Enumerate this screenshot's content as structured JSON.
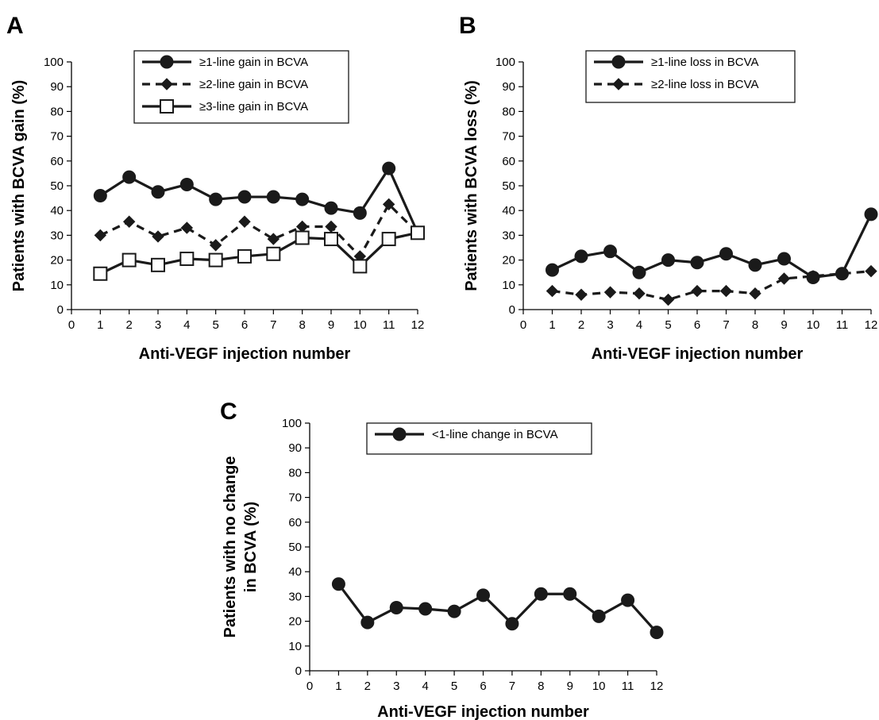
{
  "chart_data": [
    {
      "panel": "A",
      "type": "line",
      "xlabel": "Anti-VEGF injection number",
      "ylabel": "Patients with BCVA gain (%)",
      "xlim": [
        0,
        12
      ],
      "ylim": [
        0,
        100
      ],
      "x_ticks": [
        0,
        1,
        2,
        3,
        4,
        5,
        6,
        7,
        8,
        9,
        10,
        11,
        12
      ],
      "y_ticks": [
        0,
        10,
        20,
        30,
        40,
        50,
        60,
        70,
        80,
        90,
        100
      ],
      "grid": false,
      "legend_position": "top-center",
      "series": [
        {
          "name": "≥1-line gain in BCVA",
          "marker": "circle",
          "dash": "solid",
          "x": [
            1,
            2,
            3,
            4,
            5,
            6,
            7,
            8,
            9,
            10,
            11,
            12
          ],
          "values": [
            46,
            53.5,
            47.5,
            50.5,
            44.5,
            45.5,
            45.5,
            44.5,
            41,
            39,
            57,
            31
          ]
        },
        {
          "name": "≥2-line gain in BCVA",
          "marker": "diamond",
          "dash": "dashed",
          "x": [
            1,
            2,
            3,
            4,
            5,
            6,
            7,
            8,
            9,
            10,
            11,
            12
          ],
          "values": [
            30,
            35.5,
            29.5,
            33,
            26,
            35.5,
            28.5,
            33.5,
            33.5,
            21.5,
            42.5,
            31
          ]
        },
        {
          "name": "≥3-line gain in BCVA",
          "marker": "square-open",
          "dash": "solid",
          "x": [
            1,
            2,
            3,
            4,
            5,
            6,
            7,
            8,
            9,
            10,
            11,
            12
          ],
          "values": [
            14.5,
            20,
            18,
            20.5,
            20,
            21.5,
            22.5,
            29,
            28.5,
            17.5,
            28.5,
            31
          ]
        }
      ]
    },
    {
      "panel": "B",
      "type": "line",
      "xlabel": "Anti-VEGF injection number",
      "ylabel": "Patients with BCVA loss (%)",
      "xlim": [
        0,
        12
      ],
      "ylim": [
        0,
        100
      ],
      "x_ticks": [
        0,
        1,
        2,
        3,
        4,
        5,
        6,
        7,
        8,
        9,
        10,
        11,
        12
      ],
      "y_ticks": [
        0,
        10,
        20,
        30,
        40,
        50,
        60,
        70,
        80,
        90,
        100
      ],
      "grid": false,
      "legend_position": "top-center",
      "series": [
        {
          "name": "≥1-line loss in BCVA",
          "marker": "circle",
          "dash": "solid",
          "x": [
            1,
            2,
            3,
            4,
            5,
            6,
            7,
            8,
            9,
            10,
            11,
            12
          ],
          "values": [
            16,
            21.5,
            23.5,
            15,
            20,
            19,
            22.5,
            18,
            20.5,
            13,
            14.5,
            38.5
          ]
        },
        {
          "name": "≥2-line loss in BCVA",
          "marker": "diamond",
          "dash": "dashed",
          "x": [
            1,
            2,
            3,
            4,
            5,
            6,
            7,
            8,
            9,
            10,
            11,
            12
          ],
          "values": [
            7.5,
            6,
            7,
            6.5,
            4,
            7.5,
            7.5,
            6.5,
            12.5,
            13.5,
            14.5,
            15.5
          ]
        }
      ]
    },
    {
      "panel": "C",
      "type": "line",
      "xlabel": "Anti-VEGF injection number",
      "ylabel": [
        "Patients with no change",
        "in BCVA (%)"
      ],
      "xlim": [
        0,
        12
      ],
      "ylim": [
        0,
        100
      ],
      "x_ticks": [
        0,
        1,
        2,
        3,
        4,
        5,
        6,
        7,
        8,
        9,
        10,
        11,
        12
      ],
      "y_ticks": [
        0,
        10,
        20,
        30,
        40,
        50,
        60,
        70,
        80,
        90,
        100
      ],
      "grid": false,
      "legend_position": "top-center",
      "series": [
        {
          "name": "<1-line change in BCVA",
          "marker": "circle",
          "dash": "solid",
          "x": [
            1,
            2,
            3,
            4,
            5,
            6,
            7,
            8,
            9,
            10,
            11,
            12
          ],
          "values": [
            35,
            19.5,
            25.5,
            25,
            24,
            30.5,
            19,
            31,
            31,
            22,
            28.5,
            15.5
          ]
        }
      ]
    }
  ],
  "colors": {
    "line": "#1a1a1a",
    "marker_fill": "#1a1a1a",
    "open_marker_fill": "#ffffff",
    "axis": "#000000"
  }
}
